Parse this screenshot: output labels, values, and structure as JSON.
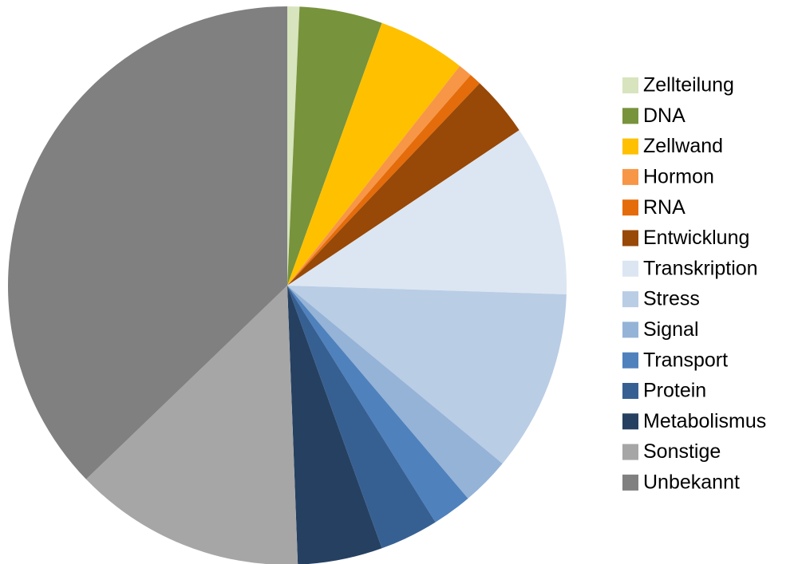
{
  "chart_data": {
    "type": "pie",
    "categories": [
      "Zellteilung",
      "DNA",
      "Zellwand",
      "Hormon",
      "RNA",
      "Entwicklung",
      "Transkription",
      "Stress",
      "Signal",
      "Transport",
      "Protein",
      "Metabolismus",
      "Sonstige",
      "Unbekannt"
    ],
    "values": [
      0.7,
      4.8,
      5.1,
      0.8,
      0.7,
      3.5,
      9.9,
      10.5,
      2.8,
      2.3,
      3.4,
      4.9,
      13.4,
      37.2
    ],
    "colors": [
      "#d7e4bd",
      "#77933c",
      "#ffc000",
      "#f79646",
      "#e46c0a",
      "#984807",
      "#dce6f2",
      "#b9cde5",
      "#95b3d7",
      "#4f81bd",
      "#376092",
      "#254061",
      "#a6a6a6",
      "#808080"
    ],
    "legend": "right"
  }
}
